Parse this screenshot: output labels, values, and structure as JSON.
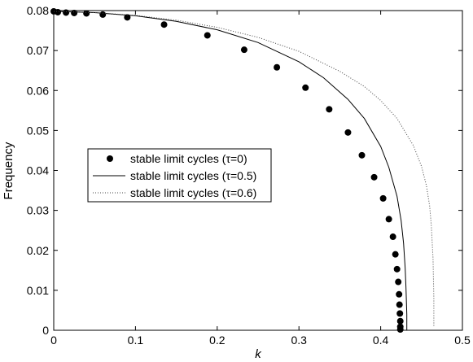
{
  "chart_data": {
    "type": "line",
    "title": "",
    "xlabel": "k",
    "ylabel": "Frequency",
    "xlim": [
      0,
      0.5
    ],
    "ylim": [
      0,
      0.08
    ],
    "xticks": [
      "0",
      "0.1",
      "0.2",
      "0.3",
      "0.4",
      "0.5"
    ],
    "yticks": [
      "0",
      "0.01",
      "0.02",
      "0.03",
      "0.04",
      "0.05",
      "0.06",
      "0.07",
      "0.08"
    ],
    "grid": false,
    "legend_position": "center-left",
    "series": [
      {
        "name": "stable limit cycles (τ=0)",
        "style": "dots",
        "color": "#000000",
        "x": [
          0.0,
          0.005,
          0.015,
          0.025,
          0.04,
          0.06,
          0.09,
          0.135,
          0.188,
          0.233,
          0.273,
          0.308,
          0.337,
          0.36,
          0.377,
          0.392,
          0.403,
          0.41,
          0.415,
          0.418,
          0.42,
          0.4215,
          0.4225,
          0.423,
          0.4235,
          0.424,
          0.424,
          0.424
        ],
        "y": [
          0.0798,
          0.0796,
          0.0795,
          0.0794,
          0.0793,
          0.079,
          0.0783,
          0.0765,
          0.0738,
          0.0702,
          0.0658,
          0.0607,
          0.0553,
          0.0495,
          0.0438,
          0.0383,
          0.033,
          0.0278,
          0.0234,
          0.019,
          0.0153,
          0.0121,
          0.009,
          0.0064,
          0.0042,
          0.0023,
          0.0009,
          0.0002
        ]
      },
      {
        "name": "stable limit cycles (τ=0.5)",
        "style": "solid",
        "color": "#000000",
        "x": [
          0.0,
          0.05,
          0.1,
          0.15,
          0.2,
          0.25,
          0.3,
          0.33,
          0.36,
          0.38,
          0.4,
          0.41,
          0.42,
          0.425,
          0.428,
          0.43,
          0.431,
          0.432,
          0.432
        ],
        "y": [
          0.0798,
          0.0795,
          0.0787,
          0.0773,
          0.0752,
          0.072,
          0.0672,
          0.0632,
          0.0578,
          0.053,
          0.046,
          0.0408,
          0.0335,
          0.0275,
          0.0218,
          0.0155,
          0.0105,
          0.004,
          0.0
        ]
      },
      {
        "name": "stable limit cycles (τ=0.6)",
        "style": "dotted",
        "color": "#444444",
        "x": [
          0.0,
          0.05,
          0.1,
          0.15,
          0.2,
          0.25,
          0.3,
          0.35,
          0.38,
          0.4,
          0.42,
          0.44,
          0.45,
          0.456,
          0.46,
          0.462,
          0.464,
          0.465,
          0.465
        ],
        "y": [
          0.0798,
          0.0795,
          0.0788,
          0.0776,
          0.0758,
          0.0733,
          0.0698,
          0.0648,
          0.061,
          0.0575,
          0.053,
          0.0462,
          0.041,
          0.0362,
          0.031,
          0.0262,
          0.018,
          0.008,
          0.001
        ]
      }
    ]
  }
}
